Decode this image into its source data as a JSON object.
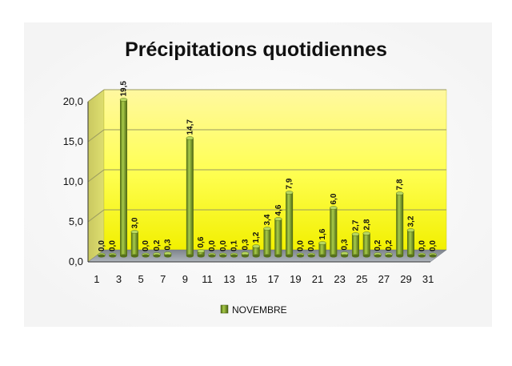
{
  "chart_data": {
    "type": "bar",
    "title": "Précipitations quotidiennes",
    "xlabel": "",
    "ylabel": "",
    "ylim": [
      0,
      20
    ],
    "ytick_labels": [
      "0,0",
      "5,0",
      "10,0",
      "15,0",
      "20,0"
    ],
    "xtick_labels": [
      "1",
      "3",
      "5",
      "7",
      "9",
      "11",
      "13",
      "15",
      "17",
      "19",
      "21",
      "23",
      "25",
      "27",
      "29",
      "31"
    ],
    "categories": [
      "1",
      "2",
      "3",
      "4",
      "5",
      "6",
      "7",
      "8",
      "9",
      "10",
      "11",
      "12",
      "13",
      "14",
      "15",
      "16",
      "17",
      "18",
      "19",
      "20",
      "21",
      "22",
      "23",
      "24",
      "25",
      "26",
      "27",
      "28",
      "29",
      "30",
      "31"
    ],
    "series": [
      {
        "name": "NOVEMBRE",
        "color": "#7a9a2a",
        "values": [
          0.0,
          0.0,
          19.5,
          3.0,
          0.0,
          0.2,
          0.3,
          null,
          14.7,
          0.6,
          0.0,
          0.0,
          0.1,
          0.3,
          1.2,
          3.4,
          4.6,
          7.9,
          0.0,
          0.0,
          1.6,
          6.0,
          0.3,
          2.7,
          2.8,
          0.2,
          0.2,
          7.8,
          3.2,
          0.0,
          0.0
        ],
        "labels": [
          "0,0",
          "0,0",
          "19,5",
          "3,0",
          "0,0",
          "0,2",
          "0,3",
          "",
          "14,7",
          "0,6",
          "0,0",
          "0,0",
          "0,1",
          "0,3",
          "1,2",
          "3,4",
          "4,6",
          "7,9",
          "0,0",
          "0,0",
          "1,6",
          "6,0",
          "0,3",
          "2,7",
          "2,8",
          "0,2",
          "0,2",
          "7,8",
          "3,2",
          "0,0",
          "0,0"
        ]
      }
    ],
    "grid": true,
    "legend": "bottom",
    "colors": {
      "wall_top": "#ffff66",
      "wall_bottom": "#f0f000",
      "floor": "#9aa0a8",
      "side_wall": "#b8b840"
    }
  }
}
